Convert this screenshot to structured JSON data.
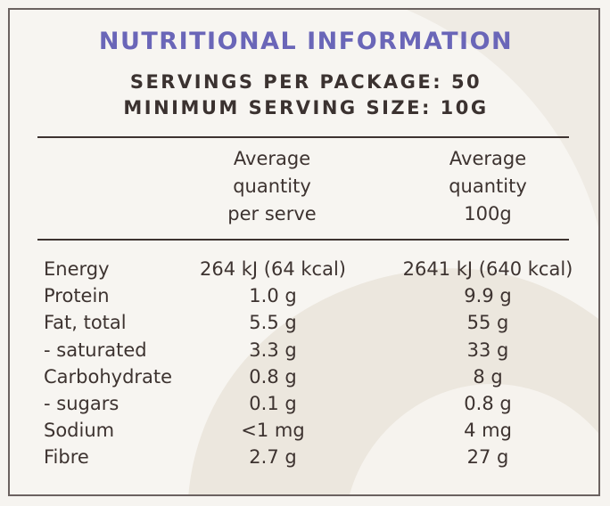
{
  "title": "NUTRITIONAL INFORMATION",
  "servings_per_package": "SERVINGS PER PACKAGE: 50",
  "minimum_serving_size": "MINIMUM SERVING SIZE: 10G",
  "columns": [
    {
      "lines": [
        "Average",
        "quantity",
        "per serve"
      ]
    },
    {
      "lines": [
        "Average",
        "quantity",
        "100g"
      ]
    }
  ],
  "rows": [
    {
      "label": "Energy",
      "per_serve": "264 kJ (64 kcal)",
      "per_100g": "2641 kJ (640 kcal)"
    },
    {
      "label": "Protein",
      "per_serve": "1.0 g",
      "per_100g": "9.9 g"
    },
    {
      "label": "Fat, total",
      "per_serve": "5.5 g",
      "per_100g": "55 g"
    },
    {
      "label": "- saturated",
      "per_serve": "3.3 g",
      "per_100g": "33 g"
    },
    {
      "label": "Carbohydrate",
      "per_serve": "0.8 g",
      "per_100g": "8 g"
    },
    {
      "label": "- sugars",
      "per_serve": "0.1 g",
      "per_100g": "0.8 g"
    },
    {
      "label": "Sodium",
      "per_serve": "<1 mg",
      "per_100g": "4 mg"
    },
    {
      "label": "Fibre",
      "per_serve": "2.7 g",
      "per_100g": "27 g"
    }
  ],
  "colors": {
    "title": "#6a66b8",
    "text": "#3d3330",
    "background": "#f7f5f1",
    "watermark": "#ebe6dd"
  }
}
